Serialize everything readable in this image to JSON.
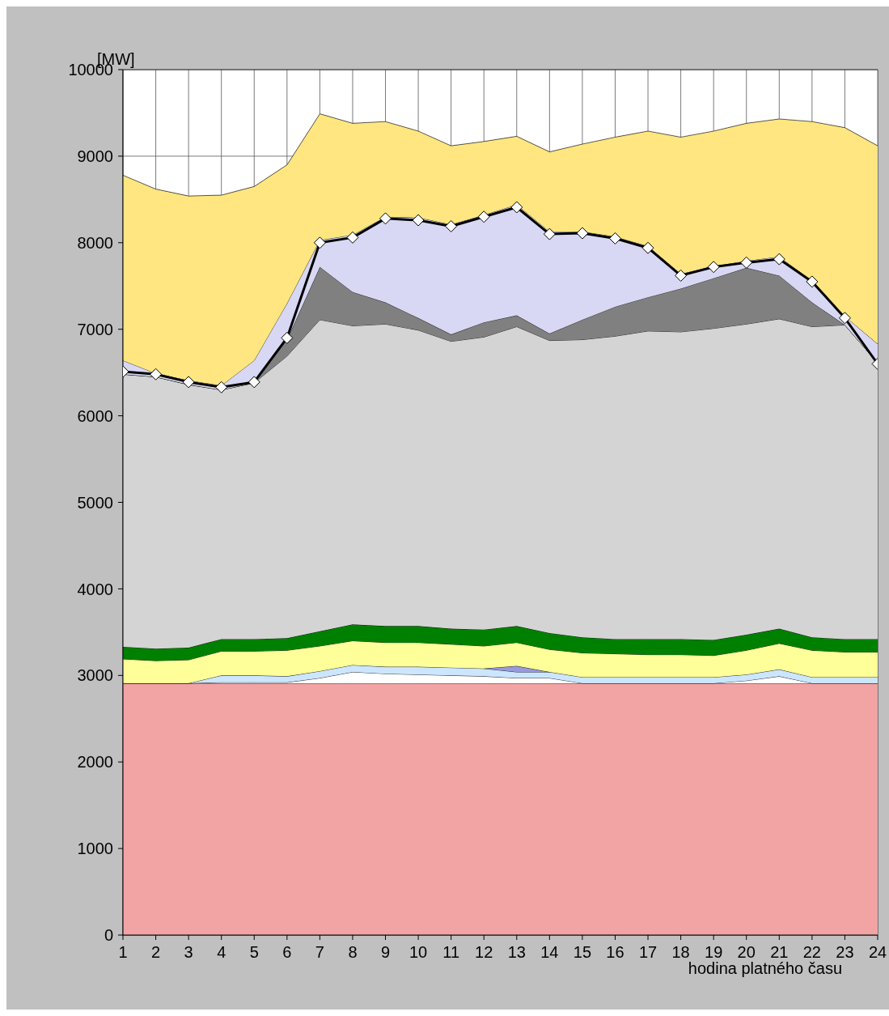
{
  "chart_data": {
    "type": "area",
    "stacked": true,
    "ylabel": "[MW]",
    "xlabel": "hodina platného času",
    "x": [
      1,
      2,
      3,
      4,
      5,
      6,
      7,
      8,
      9,
      10,
      11,
      12,
      13,
      14,
      15,
      16,
      17,
      18,
      19,
      20,
      21,
      22,
      23,
      24
    ],
    "xlim": [
      1,
      24
    ],
    "xticks": [
      1,
      2,
      3,
      4,
      5,
      6,
      7,
      8,
      9,
      10,
      11,
      12,
      13,
      14,
      15,
      16,
      17,
      18,
      19,
      20,
      21,
      22,
      23,
      24
    ],
    "ylim": [
      0,
      10000
    ],
    "yticks": [
      0,
      1000,
      2000,
      3000,
      4000,
      5000,
      6000,
      7000,
      8000,
      9000,
      10000
    ],
    "grid": true,
    "legend": false,
    "series": [
      {
        "color": "#f2a3a3",
        "values": [
          2910,
          2910,
          2910,
          2910,
          2910,
          2910,
          2910,
          2910,
          2910,
          2910,
          2910,
          2910,
          2910,
          2910,
          2910,
          2910,
          2910,
          2910,
          2910,
          2910,
          2910,
          2910,
          2910,
          2910
        ]
      },
      {
        "color": "#ffffff",
        "values": [
          0,
          0,
          0,
          10,
          10,
          10,
          60,
          130,
          110,
          100,
          90,
          80,
          60,
          60,
          0,
          0,
          0,
          0,
          0,
          30,
          80,
          0,
          0,
          0
        ]
      },
      {
        "color": "#cce6ff",
        "values": [
          0,
          0,
          0,
          80,
          80,
          70,
          80,
          80,
          80,
          90,
          90,
          90,
          70,
          70,
          70,
          70,
          70,
          70,
          70,
          70,
          80,
          70,
          70,
          70
        ]
      },
      {
        "color": "#9999dd",
        "values": [
          null,
          null,
          null,
          null,
          null,
          null,
          null,
          null,
          null,
          null,
          null,
          0,
          70,
          0,
          null,
          null,
          null,
          null,
          null,
          null,
          null,
          null,
          null,
          null
        ]
      },
      {
        "color": "#ffff99",
        "values": [
          280,
          260,
          270,
          280,
          280,
          300,
          290,
          280,
          280,
          280,
          270,
          260,
          270,
          260,
          280,
          270,
          260,
          260,
          250,
          280,
          300,
          310,
          290,
          290
        ]
      },
      {
        "color": "#008000",
        "values": [
          140,
          140,
          140,
          140,
          140,
          140,
          170,
          190,
          190,
          190,
          180,
          190,
          190,
          190,
          180,
          170,
          180,
          180,
          180,
          180,
          170,
          150,
          150,
          150
        ]
      },
      {
        "color": "#d4d4d4",
        "values": [
          3150,
          3140,
          3040,
          2880,
          2960,
          3260,
          3600,
          3450,
          3490,
          3420,
          3320,
          3380,
          3460,
          3380,
          3440,
          3500,
          3560,
          3550,
          3600,
          3590,
          3580,
          3590,
          3630,
          3190
        ]
      },
      {
        "color": "#808080",
        "values": [
          0,
          0,
          0,
          0,
          0,
          190,
          610,
          390,
          250,
          140,
          80,
          170,
          130,
          80,
          230,
          340,
          390,
          500,
          580,
          650,
          500,
          280,
          0,
          0
        ]
      },
      {
        "color": "#d8d8f4",
        "values": [
          160,
          40,
          50,
          50,
          260,
          420,
          310,
          660,
          990,
          1160,
          1270,
          1240,
          1280,
          1180,
          1020,
          810,
          590,
          170,
          140,
          80,
          220,
          250,
          100,
          220
        ]
      },
      {
        "color": "#ffe680",
        "values": [
          2140,
          2130,
          2130,
          2200,
          2010,
          1600,
          1460,
          1290,
          1100,
          1000,
          910,
          850,
          790,
          920,
          1010,
          1150,
          1330,
          1580,
          1560,
          1590,
          1590,
          1840,
          2180,
          2290
        ]
      },
      {
        "color": "#ffffff",
        "values": [
          1220,
          1380,
          1460,
          1450,
          1350,
          1100,
          510,
          620,
          600,
          710,
          880,
          830,
          770,
          950,
          860,
          780,
          710,
          780,
          710,
          620,
          570,
          600,
          670,
          880
        ]
      },
      {
        "type": "line",
        "color": "#000000",
        "marker": "diamond",
        "values": [
          6510,
          6480,
          6390,
          6330,
          6390,
          6900,
          8000,
          8060,
          8280,
          8260,
          8190,
          8300,
          8410,
          8100,
          8110,
          8050,
          7940,
          7620,
          7720,
          7770,
          7810,
          7550,
          7130,
          6600
        ]
      }
    ]
  }
}
